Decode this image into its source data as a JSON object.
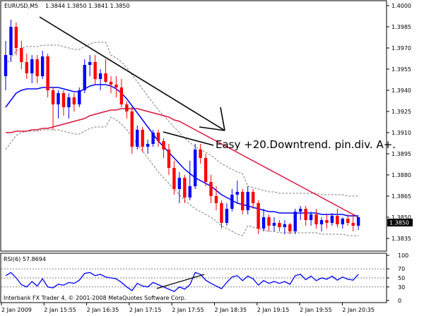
{
  "header": {
    "symbol": "EURUSD,M5",
    "ohlc": "1.3844 1.3850 1.3841 1.3850"
  },
  "annotation": "Easy +20.Downtrend. pin.div. A+.",
  "current_price_label": "1.3850",
  "price_axis_labels": [
    "1.4000",
    "1.3985",
    "1.3970",
    "1.3955",
    "1.3940",
    "1.3925",
    "1.3910",
    "1.3895",
    "1.3880",
    "1.3865",
    "1.3850",
    "1.3835"
  ],
  "rsi": {
    "label": "RSI(6) 57.8694",
    "levels": [
      "100",
      "70",
      "50",
      "30",
      "0"
    ]
  },
  "footer": "Interbank FX Trader 4, © 2001-2008 MetaQuotes Software Corp.",
  "time_axis_labels": [
    "2 Jan 2009",
    "2 Jan 15:55",
    "2 Jan 16:35",
    "2 Jan 17:15",
    "2 Jan 17:55",
    "2 Jan 18:35",
    "2 Jan 19:15",
    "2 Jan 19:55",
    "2 Jan 20:35"
  ],
  "colors": {
    "bull": "#0000ff",
    "bear": "#ff0000",
    "ma_fast": "#0000ff",
    "ma_slow": "#dc143c",
    "bands": "#808080",
    "rsi_line": "#0000ff"
  },
  "chart_data": {
    "type": "candlestick",
    "ylim": [
      1.3828,
      1.4002
    ],
    "candles": [
      {
        "o": 1.395,
        "h": 1.3975,
        "l": 1.394,
        "c": 1.3965
      },
      {
        "o": 1.3965,
        "h": 1.399,
        "l": 1.396,
        "c": 1.3985
      },
      {
        "o": 1.3985,
        "h": 1.3988,
        "l": 1.3965,
        "c": 1.397
      },
      {
        "o": 1.397,
        "h": 1.3975,
        "l": 1.3955,
        "c": 1.396
      },
      {
        "o": 1.396,
        "h": 1.3966,
        "l": 1.3948,
        "c": 1.3952
      },
      {
        "o": 1.3952,
        "h": 1.3965,
        "l": 1.3945,
        "c": 1.3962
      },
      {
        "o": 1.3962,
        "h": 1.3965,
        "l": 1.3945,
        "c": 1.395
      },
      {
        "o": 1.395,
        "h": 1.3968,
        "l": 1.3948,
        "c": 1.3964
      },
      {
        "o": 1.3964,
        "h": 1.3966,
        "l": 1.3935,
        "c": 1.394
      },
      {
        "o": 1.394,
        "h": 1.3942,
        "l": 1.3912,
        "c": 1.393
      },
      {
        "o": 1.393,
        "h": 1.394,
        "l": 1.392,
        "c": 1.3938
      },
      {
        "o": 1.3938,
        "h": 1.394,
        "l": 1.3922,
        "c": 1.3928
      },
      {
        "o": 1.3928,
        "h": 1.3938,
        "l": 1.392,
        "c": 1.3935
      },
      {
        "o": 1.3935,
        "h": 1.3938,
        "l": 1.3925,
        "c": 1.393
      },
      {
        "o": 1.393,
        "h": 1.3942,
        "l": 1.3928,
        "c": 1.394
      },
      {
        "o": 1.394,
        "h": 1.3962,
        "l": 1.3938,
        "c": 1.3958
      },
      {
        "o": 1.3958,
        "h": 1.3965,
        "l": 1.395,
        "c": 1.396
      },
      {
        "o": 1.396,
        "h": 1.3965,
        "l": 1.3944,
        "c": 1.3948
      },
      {
        "o": 1.3948,
        "h": 1.3955,
        "l": 1.394,
        "c": 1.3952
      },
      {
        "o": 1.3952,
        "h": 1.3962,
        "l": 1.3945,
        "c": 1.3946
      },
      {
        "o": 1.3946,
        "h": 1.395,
        "l": 1.3938,
        "c": 1.3944
      },
      {
        "o": 1.3944,
        "h": 1.395,
        "l": 1.3935,
        "c": 1.3942
      },
      {
        "o": 1.3942,
        "h": 1.3948,
        "l": 1.3928,
        "c": 1.393
      },
      {
        "o": 1.393,
        "h": 1.3932,
        "l": 1.392,
        "c": 1.3925
      },
      {
        "o": 1.3925,
        "h": 1.3928,
        "l": 1.3895,
        "c": 1.39
      },
      {
        "o": 1.39,
        "h": 1.3915,
        "l": 1.3898,
        "c": 1.3912
      },
      {
        "o": 1.3912,
        "h": 1.3914,
        "l": 1.3896,
        "c": 1.39
      },
      {
        "o": 1.39,
        "h": 1.3905,
        "l": 1.3895,
        "c": 1.3902
      },
      {
        "o": 1.3902,
        "h": 1.3912,
        "l": 1.39,
        "c": 1.391
      },
      {
        "o": 1.391,
        "h": 1.3912,
        "l": 1.39,
        "c": 1.3904
      },
      {
        "o": 1.3904,
        "h": 1.3906,
        "l": 1.3892,
        "c": 1.3898
      },
      {
        "o": 1.3898,
        "h": 1.3902,
        "l": 1.388,
        "c": 1.3885
      },
      {
        "o": 1.3885,
        "h": 1.389,
        "l": 1.3866,
        "c": 1.387
      },
      {
        "o": 1.387,
        "h": 1.3882,
        "l": 1.386,
        "c": 1.3878
      },
      {
        "o": 1.3878,
        "h": 1.388,
        "l": 1.386,
        "c": 1.3864
      },
      {
        "o": 1.3864,
        "h": 1.389,
        "l": 1.3862,
        "c": 1.3872
      },
      {
        "o": 1.3872,
        "h": 1.3902,
        "l": 1.387,
        "c": 1.3898
      },
      {
        "o": 1.3898,
        "h": 1.3902,
        "l": 1.3888,
        "c": 1.3892
      },
      {
        "o": 1.3892,
        "h": 1.3895,
        "l": 1.3872,
        "c": 1.3875
      },
      {
        "o": 1.3875,
        "h": 1.388,
        "l": 1.386,
        "c": 1.3865
      },
      {
        "o": 1.3865,
        "h": 1.3872,
        "l": 1.3855,
        "c": 1.386
      },
      {
        "o": 1.386,
        "h": 1.3862,
        "l": 1.3842,
        "c": 1.3846
      },
      {
        "o": 1.3846,
        "h": 1.386,
        "l": 1.3844,
        "c": 1.3856
      },
      {
        "o": 1.3856,
        "h": 1.387,
        "l": 1.3854,
        "c": 1.3866
      },
      {
        "o": 1.3866,
        "h": 1.3876,
        "l": 1.386,
        "c": 1.3868
      },
      {
        "o": 1.3868,
        "h": 1.387,
        "l": 1.3852,
        "c": 1.3855
      },
      {
        "o": 1.3855,
        "h": 1.3872,
        "l": 1.3852,
        "c": 1.3868
      },
      {
        "o": 1.3868,
        "h": 1.387,
        "l": 1.3856,
        "c": 1.386
      },
      {
        "o": 1.386,
        "h": 1.3862,
        "l": 1.3838,
        "c": 1.3842
      },
      {
        "o": 1.3842,
        "h": 1.3856,
        "l": 1.384,
        "c": 1.385
      },
      {
        "o": 1.385,
        "h": 1.3852,
        "l": 1.384,
        "c": 1.3844
      },
      {
        "o": 1.3844,
        "h": 1.385,
        "l": 1.384,
        "c": 1.3846
      },
      {
        "o": 1.3846,
        "h": 1.3848,
        "l": 1.384,
        "c": 1.3843
      },
      {
        "o": 1.3843,
        "h": 1.3848,
        "l": 1.3838,
        "c": 1.3845
      },
      {
        "o": 1.3845,
        "h": 1.3846,
        "l": 1.3838,
        "c": 1.384
      },
      {
        "o": 1.384,
        "h": 1.3856,
        "l": 1.3838,
        "c": 1.3854
      },
      {
        "o": 1.3854,
        "h": 1.3858,
        "l": 1.3848,
        "c": 1.3856
      },
      {
        "o": 1.3856,
        "h": 1.3858,
        "l": 1.3844,
        "c": 1.3848
      },
      {
        "o": 1.3848,
        "h": 1.3854,
        "l": 1.3844,
        "c": 1.3852
      },
      {
        "o": 1.3852,
        "h": 1.3856,
        "l": 1.3842,
        "c": 1.3845
      },
      {
        "o": 1.3845,
        "h": 1.385,
        "l": 1.384,
        "c": 1.3848
      },
      {
        "o": 1.3848,
        "h": 1.3852,
        "l": 1.3842,
        "c": 1.3846
      },
      {
        "o": 1.3846,
        "h": 1.3853,
        "l": 1.3844,
        "c": 1.3851
      },
      {
        "o": 1.3851,
        "h": 1.3856,
        "l": 1.3843,
        "c": 1.3845
      },
      {
        "o": 1.3845,
        "h": 1.385,
        "l": 1.3842,
        "c": 1.3849
      },
      {
        "o": 1.3849,
        "h": 1.3852,
        "l": 1.3844,
        "c": 1.3846
      },
      {
        "o": 1.3846,
        "h": 1.3852,
        "l": 1.384,
        "c": 1.3844
      },
      {
        "o": 1.3844,
        "h": 1.385,
        "l": 1.3841,
        "c": 1.385
      }
    ],
    "rsi_values": [
      55,
      62,
      50,
      35,
      30,
      42,
      32,
      48,
      30,
      28,
      36,
      34,
      40,
      38,
      45,
      60,
      62,
      55,
      58,
      52,
      50,
      48,
      40,
      30,
      22,
      38,
      32,
      30,
      40,
      35,
      30,
      25,
      20,
      30,
      25,
      35,
      62,
      58,
      45,
      38,
      32,
      26,
      40,
      52,
      55,
      44,
      54,
      48,
      34,
      44,
      38,
      42,
      38,
      42,
      36,
      55,
      58,
      46,
      54,
      44,
      50,
      47,
      54,
      45,
      52,
      47,
      45,
      58
    ],
    "ma_fast": [
      1.3928,
      1.3933,
      1.3938,
      1.394,
      1.3941,
      1.3941,
      1.3941,
      1.3942,
      1.3942,
      1.3942,
      1.3942,
      1.3941,
      1.394,
      1.3939,
      1.3939,
      1.3941,
      1.3943,
      1.3944,
      1.3944,
      1.3944,
      1.3943,
      1.3941,
      1.3938,
      1.3934,
      1.3929,
      1.3924,
      1.3919,
      1.3914,
      1.3909,
      1.3904,
      1.39,
      1.3896,
      1.3892,
      1.3888,
      1.3884,
      1.3881,
      1.3878,
      1.3876,
      1.3874,
      1.3872,
      1.3869,
      1.3866,
      1.3864,
      1.3862,
      1.386,
      1.3859,
      1.3858,
      1.3857,
      1.3856,
      1.3855,
      1.3854,
      1.3854,
      1.3853,
      1.3853,
      1.3853,
      1.3853,
      1.3853,
      1.3853,
      1.3853,
      1.3853,
      1.3852,
      1.3852,
      1.3852,
      1.3852,
      1.3852,
      1.3851,
      1.3851,
      1.3851
    ],
    "ma_slow": [
      1.391,
      1.391,
      1.3911,
      1.3911,
      1.3911,
      1.3912,
      1.3912,
      1.3913,
      1.3913,
      1.3914,
      1.3915,
      1.3916,
      1.3917,
      1.3918,
      1.3919,
      1.392,
      1.3922,
      1.3923,
      1.3924,
      1.3925,
      1.3926,
      1.3926,
      1.3927,
      1.3927,
      1.3927,
      1.3927,
      1.3926,
      1.3925,
      1.3924,
      1.3923,
      1.3922,
      1.3921,
      1.3919,
      1.3918,
      1.3916,
      1.3914,
      1.3912,
      1.391,
      1.3908,
      1.3906,
      1.3904,
      1.3902,
      1.39,
      1.3898,
      1.3896,
      1.3894,
      1.3892,
      1.389,
      1.3888,
      1.3886,
      1.3884,
      1.3882,
      1.388,
      1.3878,
      1.3876,
      1.3874,
      1.3872,
      1.387,
      1.3868,
      1.3866,
      1.3864,
      1.3862,
      1.386,
      1.3858,
      1.3856,
      1.3854,
      1.3852,
      1.385
    ]
  }
}
